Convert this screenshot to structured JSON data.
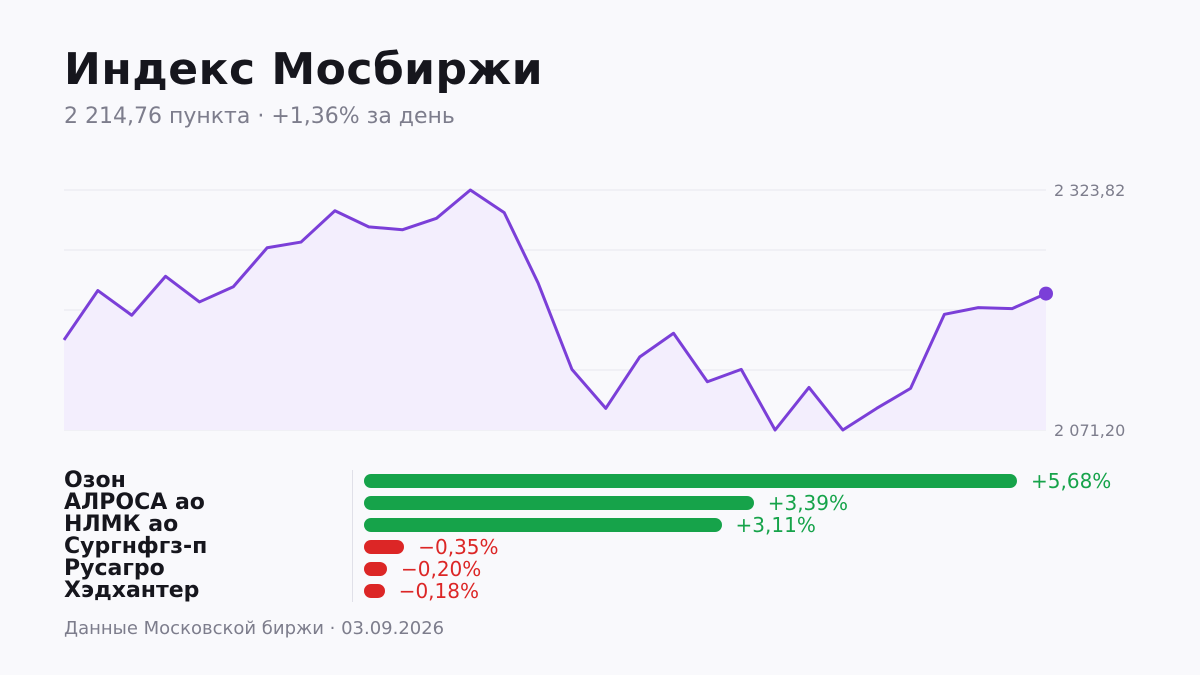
{
  "title": "Индекс Мосбиржи",
  "subtitle": "2 214,76 пункта · +1,36% за день",
  "footer": "Данные Московской биржи · 03.09.2026",
  "colors": {
    "line": "#7b3fd8",
    "area": "#f3eefd",
    "positive": "#16a34a",
    "negative": "#dc2626",
    "grid": "#e6e6ee"
  },
  "chart_data": [
    {
      "type": "area",
      "title": "Индекс Мосбиржи",
      "y_tick_labels": [
        "2 323,82",
        "2 071,20"
      ],
      "ylim": [
        2071.2,
        2323.82
      ],
      "grid": true,
      "last_point_marker": true,
      "values": [
        2166,
        2218,
        2192,
        2233,
        2206,
        2222,
        2263,
        2269,
        2302,
        2285,
        2282,
        2294,
        2323.8,
        2300,
        2226,
        2135,
        2094,
        2148,
        2173,
        2122,
        2135,
        2071.2,
        2116,
        2071.2,
        2094,
        2115,
        2193,
        2200,
        2199,
        2214.76
      ]
    },
    {
      "type": "bar",
      "orientation": "horizontal",
      "categories": [
        "Озон",
        "АЛРОСА ао",
        "НЛМК ао",
        "Сургнфгз-п",
        "Русагро",
        "Хэдхантер"
      ],
      "values": [
        5.68,
        3.39,
        3.11,
        -0.35,
        -0.2,
        -0.18
      ],
      "value_labels": [
        "+5,68%",
        "+3,39%",
        "+3,11%",
        "−0,35%",
        "−0,20%",
        "−0,18%"
      ]
    }
  ]
}
